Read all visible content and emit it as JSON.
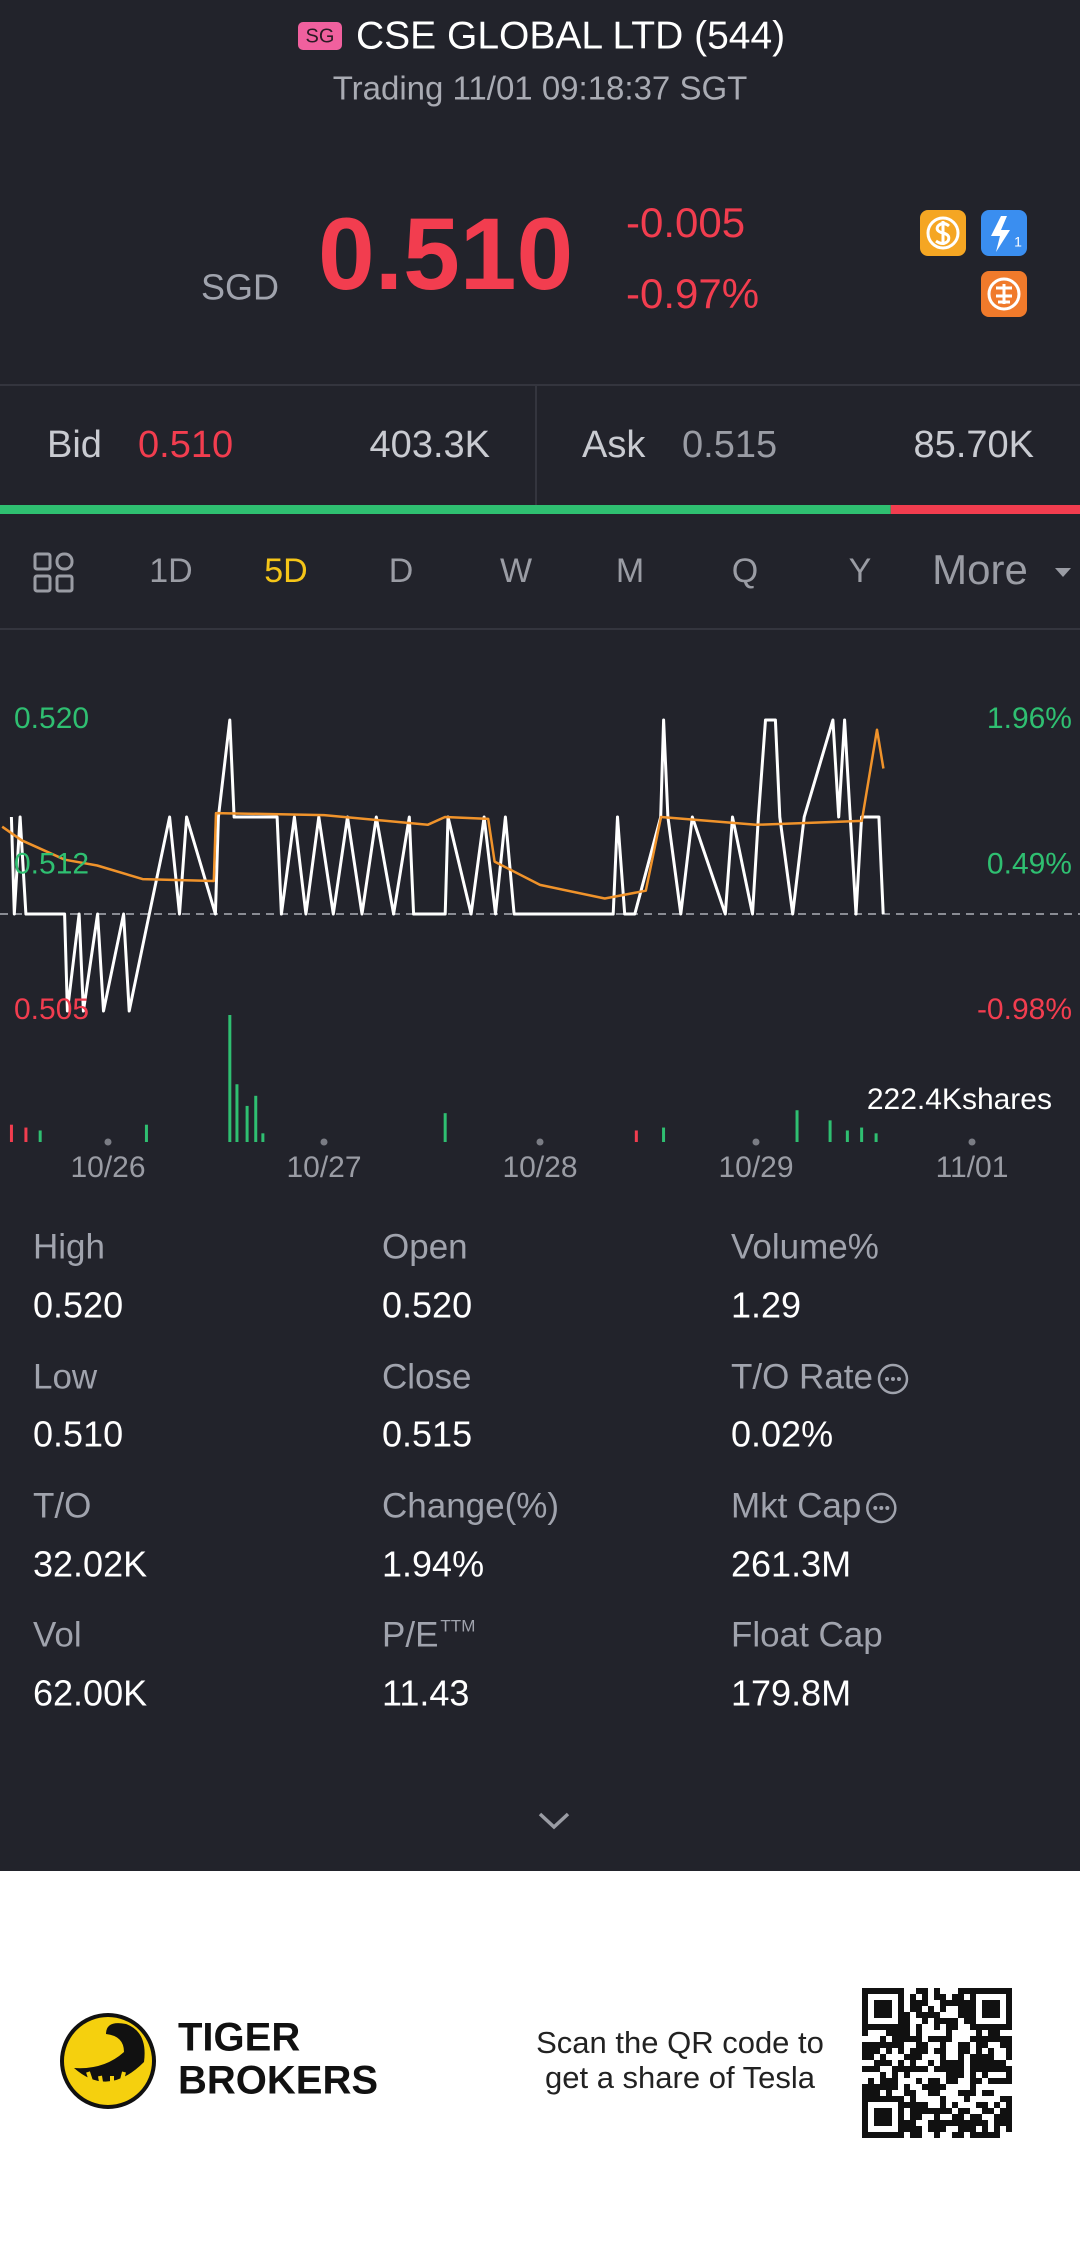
{
  "header": {
    "badge": "SG",
    "title": "CSE GLOBAL LTD (544)",
    "status": "Trading 11/01 09:18:37 SGT"
  },
  "quote": {
    "currency": "SGD",
    "price": "0.510",
    "change": "-0.005",
    "change_pct": "-0.97%"
  },
  "order_book": {
    "bid_label": "Bid",
    "bid_price": "0.510",
    "bid_size": {
      "value": 403300,
      "label": "403.3K"
    },
    "ask_label": "Ask",
    "ask_price": "0.515",
    "ask_size": {
      "value": 85700,
      "label": "85.70K"
    },
    "bid_color": "#2fbf71",
    "ask_color": "#f23d4f"
  },
  "tabs": [
    "1D",
    "5D",
    "D",
    "W",
    "M",
    "Q",
    "Y",
    "More"
  ],
  "active_tab": 1,
  "chart_data": {
    "type": "line",
    "xlim": [
      0,
      5
    ],
    "xticks": [
      {
        "value": 0.5,
        "label": "10/26"
      },
      {
        "value": 1.5,
        "label": "10/27"
      },
      {
        "value": 2.5,
        "label": "10/28"
      },
      {
        "value": 3.5,
        "label": "10/29"
      },
      {
        "value": 4.5,
        "label": "11/01"
      }
    ],
    "ylim": [
      0.505,
      0.52
    ],
    "yticks": [
      {
        "value": 0.52,
        "label": "0.520"
      },
      {
        "value": 0.5125,
        "label": "0.512"
      },
      0.505
    ],
    "y2lim": [
      -0.98,
      1.96
    ],
    "y2ticks": [
      {
        "value": 1.96,
        "label": "1.96%"
      },
      {
        "value": 0.49,
        "label": "0.49%"
      },
      {
        "value": -0.98,
        "label": "-0.98%"
      }
    ],
    "baseline": 0.51,
    "up_color": "#2fbf71",
    "down_color": "#f23d4f",
    "series": [
      {
        "color": "#ffffff",
        "x": [
          0.053,
          0.066,
          0.093,
          0.12,
          0.299,
          0.312,
          0.366,
          0.386,
          0.452,
          0.479,
          0.572,
          0.598,
          0.691,
          0.785,
          0.831,
          0.864,
          0.997,
          1.011,
          1.064,
          1.084,
          1.283,
          1.303,
          1.363,
          1.416,
          1.476,
          1.543,
          1.609,
          1.676,
          1.742,
          1.822,
          1.895,
          1.915,
          2.061,
          2.074,
          2.181,
          2.241,
          2.294,
          2.34,
          2.38,
          2.839,
          2.859,
          2.892,
          2.939,
          3.059,
          3.072,
          3.092,
          3.152,
          3.205,
          3.358,
          3.391,
          3.484,
          3.511,
          3.544,
          3.59,
          3.61,
          3.67,
          3.723,
          3.856,
          3.883,
          3.91,
          3.936,
          3.963,
          3.989,
          4.069,
          4.089
        ],
        "values": [
          0.515,
          0.51,
          0.515,
          0.51,
          0.51,
          0.505,
          0.51,
          0.505,
          0.51,
          0.505,
          0.51,
          0.505,
          0.51,
          0.515,
          0.51,
          0.515,
          0.51,
          0.515,
          0.52,
          0.515,
          0.515,
          0.51,
          0.515,
          0.51,
          0.515,
          0.51,
          0.515,
          0.51,
          0.515,
          0.51,
          0.515,
          0.51,
          0.51,
          0.515,
          0.51,
          0.515,
          0.51,
          0.515,
          0.51,
          0.51,
          0.515,
          0.51,
          0.51,
          0.515,
          0.52,
          0.515,
          0.51,
          0.515,
          0.51,
          0.515,
          0.51,
          0.515,
          0.52,
          0.52,
          0.515,
          0.51,
          0.515,
          0.52,
          0.515,
          0.52,
          0.515,
          0.51,
          0.515,
          0.515,
          0.51
        ]
      },
      {
        "color": "#f0932b",
        "x": [
          0.01,
          0.1,
          0.3,
          0.45,
          0.66,
          0.99,
          1.0,
          1.5,
          1.98,
          2.06,
          2.26,
          2.29,
          2.5,
          2.8,
          2.99,
          3.06,
          3.5,
          3.99,
          4.06,
          4.09
        ],
        "values": [
          0.5145,
          0.5138,
          0.5128,
          0.5125,
          0.5118,
          0.5117,
          0.5152,
          0.5151,
          0.5146,
          0.515,
          0.5149,
          0.5127,
          0.5115,
          0.5108,
          0.5112,
          0.515,
          0.5146,
          0.5148,
          0.5195,
          0.5175
        ]
      }
    ],
    "volume": {
      "label": "222.4Kshares",
      "ylim": [
        0,
        222400
      ],
      "x": [
        0.053,
        0.12,
        0.186,
        0.678,
        1.064,
        1.097,
        1.144,
        1.184,
        1.217,
        2.061,
        2.946,
        3.072,
        3.69,
        3.843,
        3.923,
        3.989,
        4.056
      ],
      "values": [
        30300,
        25300,
        20200,
        30300,
        222400,
        101100,
        63200,
        80900,
        15200,
        50500,
        20200,
        25300,
        55600,
        37900,
        20200,
        25300,
        15200
      ],
      "colors": [
        "#f23d4f",
        "#f23d4f",
        "#2fbf71",
        "#2fbf71",
        "#2fbf71",
        "#2fbf71",
        "#2fbf71",
        "#2fbf71",
        "#2fbf71",
        "#2fbf71",
        "#f23d4f",
        "#2fbf71",
        "#2fbf71",
        "#2fbf71",
        "#2fbf71",
        "#2fbf71",
        "#2fbf71"
      ]
    }
  },
  "stats": [
    {
      "label": "High",
      "value": "0.520"
    },
    {
      "label": "Open",
      "value": "0.520"
    },
    {
      "label": "Volume%",
      "value": "1.29"
    },
    {
      "label": "Low",
      "value": "0.510"
    },
    {
      "label": "Close",
      "value": "0.515"
    },
    {
      "label": "T/O Rate",
      "value": "0.02%",
      "info": true
    },
    {
      "label": "T/O",
      "value": "32.02K"
    },
    {
      "label": "Change(%)",
      "value": "1.94%"
    },
    {
      "label": "Mkt Cap",
      "value": "261.3M",
      "info": true
    },
    {
      "label": "Vol",
      "value": "62.00K"
    },
    {
      "label": "P/E",
      "sup": "TTM",
      "value": "11.43"
    },
    {
      "label": "Float Cap",
      "value": "179.8M"
    }
  ],
  "footer": {
    "brand_line1": "TIGER",
    "brand_line2": "BROKERS",
    "promo_line1": "Scan the QR code to",
    "promo_line2": "get a share of Tesla"
  }
}
